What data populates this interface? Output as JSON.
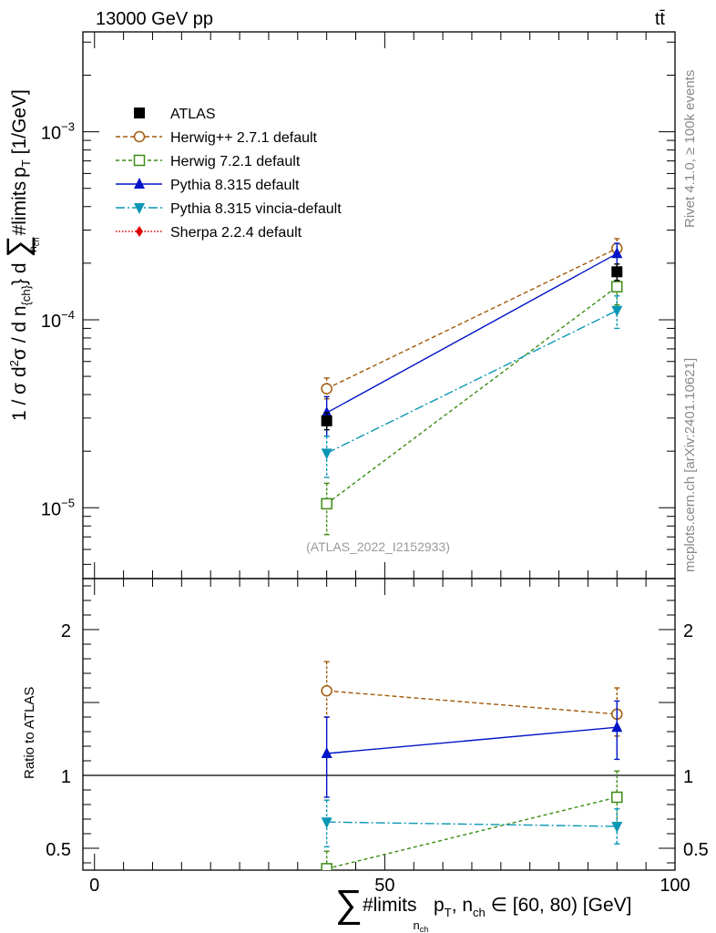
{
  "header": {
    "energy": "13000 GeV pp",
    "process": "tt̄"
  },
  "side_labels": {
    "rivet": "Rivet 4.1.0, ≥ 100k events",
    "mcplots": "mcplots.cern.ch [arXiv:2401.10621]"
  },
  "watermark": "(ATLAS_2022_I2152933)",
  "chart_data": {
    "type": "line",
    "xlim": [
      -2,
      100
    ],
    "x_ticks": [
      0,
      50,
      100
    ],
    "x_tick_labels": [
      "0",
      "50",
      "100"
    ],
    "xlabel": {
      "sum": "∑",
      "limits": "#limits",
      "sub": "n",
      "subsub": "ch",
      "rest": " p",
      "rest_sub": "T",
      "rest2": ", n",
      "rest2_sub": "ch",
      "rest3": " ∈ [60, 80) [GeV]"
    },
    "main": {
      "ylog": true,
      "ylim": [
        4.2e-06,
        0.0034
      ],
      "ylabel": {
        "part1": "1 / σ d",
        "sup2": "2",
        "part2": "σ / d n",
        "sub_ch": "{ch}",
        "part3": "} d ",
        "sum": "∑",
        "limits": "#limits",
        "sub_n": "n",
        "subsub_ch": "ch",
        "part4": " p",
        "sub_T": "T",
        "part5": " [1/GeV]"
      },
      "y_ticks": [
        {
          "value": 1e-05,
          "base": "10",
          "exp": "−5"
        },
        {
          "value": 0.0001,
          "base": "10",
          "exp": "−4"
        },
        {
          "value": 0.001,
          "base": "10",
          "exp": "−3"
        }
      ],
      "series": [
        {
          "name": "ATLAS",
          "label": "ATLAS",
          "color": "#000000",
          "dash": "",
          "marker": "square-filled",
          "x": [
            40,
            90
          ],
          "y": [
            2.9e-05,
            0.00018
          ],
          "err_low": [
            3e-06,
            1.8e-05
          ],
          "err_high": [
            3e-06,
            1.8e-05
          ]
        },
        {
          "name": "Herwig++ 2.7.1 default",
          "label": "Herwig++ 2.7.1 default",
          "color": "#a05a0a",
          "dash": "5,3",
          "marker": "circle-open",
          "x": [
            40,
            90
          ],
          "y": [
            4.3e-05,
            0.00024
          ],
          "err_low": [
            5e-06,
            2.5e-05
          ],
          "err_high": [
            6e-06,
            3e-05
          ]
        },
        {
          "name": "Herwig 7.2.1 default",
          "label": "Herwig 7.2.1 default",
          "color": "#3c8c14",
          "dash": "4,3",
          "marker": "square-open",
          "x": [
            40,
            90
          ],
          "y": [
            1.05e-05,
            0.00015
          ],
          "err_low": [
            3.3e-06,
            3e-05
          ],
          "err_high": [
            3e-06,
            3.5e-05
          ]
        },
        {
          "name": "Pythia 8.315 default",
          "label": "Pythia 8.315 default",
          "color": "#0014c8",
          "dash": "",
          "marker": "triangle-up",
          "x": [
            40,
            90
          ],
          "y": [
            3.2e-05,
            0.000225
          ],
          "err_low": [
            8e-06,
            4e-05
          ],
          "err_high": [
            7e-06,
            3e-05
          ]
        },
        {
          "name": "Pythia 8.315 vincia-default",
          "label": "Pythia 8.315 vincia-default",
          "color": "#0a96b4",
          "dash": "10,3,2,3",
          "marker": "triangle-down",
          "x": [
            40,
            90
          ],
          "y": [
            1.95e-05,
            0.000112
          ],
          "err_low": [
            5e-06,
            2.2e-05
          ],
          "err_high": [
            4.5e-06,
            2.2e-05
          ]
        },
        {
          "name": "Sherpa 2.2.4 default",
          "label": "Sherpa 2.2.4 default",
          "color": "#e00000",
          "dash": "1.5,2",
          "marker": "diamond",
          "x": [],
          "y": [],
          "err_low": [],
          "err_high": []
        }
      ]
    },
    "ratio": {
      "ylabel": "Ratio to ATLAS",
      "ylim": [
        0.35,
        2.35
      ],
      "y_ticks": [
        {
          "value": 0.5,
          "label": "0.5"
        },
        {
          "value": 1,
          "label": "1"
        },
        {
          "value": 2,
          "label": "2"
        }
      ],
      "reference": 1,
      "series": [
        {
          "name": "Herwig++ 2.7.1 default",
          "color": "#a05a0a",
          "dash": "5,3",
          "marker": "circle-open",
          "x": [
            40,
            90
          ],
          "y": [
            1.58,
            1.42
          ],
          "err_low": [
            0.18,
            0.15
          ],
          "err_high": [
            0.2,
            0.18
          ]
        },
        {
          "name": "Herwig 7.2.1 default",
          "color": "#3c8c14",
          "dash": "4,3",
          "marker": "square-open",
          "x": [
            40,
            90
          ],
          "y": [
            0.36,
            0.85
          ],
          "err_low": [
            0.12,
            0.2
          ],
          "err_high": [
            0.12,
            0.18
          ]
        },
        {
          "name": "Pythia 8.315 default",
          "color": "#0014c8",
          "dash": "",
          "marker": "triangle-up",
          "x": [
            40,
            90
          ],
          "y": [
            1.15,
            1.33
          ],
          "err_low": [
            0.3,
            0.22
          ],
          "err_high": [
            0.25,
            0.18
          ]
        },
        {
          "name": "Pythia 8.315 vincia-default",
          "color": "#0a96b4",
          "dash": "10,3,2,3",
          "marker": "triangle-down",
          "x": [
            40,
            90
          ],
          "y": [
            0.68,
            0.65
          ],
          "err_low": [
            0.17,
            0.12
          ],
          "err_high": [
            0.15,
            0.12
          ]
        }
      ]
    }
  }
}
